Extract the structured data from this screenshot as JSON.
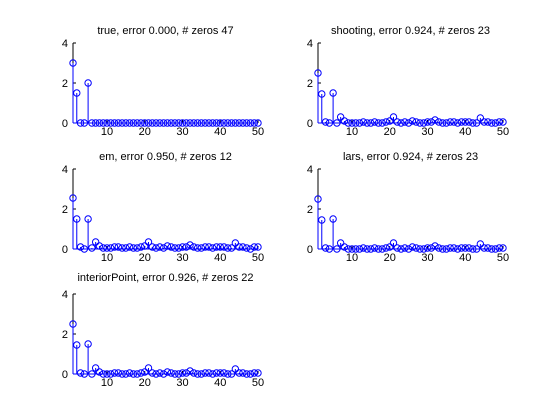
{
  "window": {
    "background": "#ffffff"
  },
  "colors": {
    "stem": "#0000ff",
    "axis": "#000000"
  },
  "chart_data": [
    {
      "type": "stem",
      "title": "true, error 0.000, # zeros 47",
      "xlim": [
        1,
        50
      ],
      "ylim": [
        0,
        4
      ],
      "xticks": [
        10,
        20,
        30,
        40,
        50
      ],
      "yticks": [
        0,
        2,
        4
      ],
      "x": [
        1,
        2,
        3,
        4,
        5,
        6,
        7,
        8,
        9,
        10,
        11,
        12,
        13,
        14,
        15,
        16,
        17,
        18,
        19,
        20,
        21,
        22,
        23,
        24,
        25,
        26,
        27,
        28,
        29,
        30,
        31,
        32,
        33,
        34,
        35,
        36,
        37,
        38,
        39,
        40,
        41,
        42,
        43,
        44,
        45,
        46,
        47,
        48,
        49,
        50
      ],
      "values": [
        3,
        1.5,
        0,
        0,
        2,
        0,
        0,
        0,
        0,
        0,
        0,
        0,
        0,
        0,
        0,
        0,
        0,
        0,
        0,
        0,
        0,
        0,
        0,
        0,
        0,
        0,
        0,
        0,
        0,
        0,
        0,
        0,
        0,
        0,
        0,
        0,
        0,
        0,
        0,
        0,
        0,
        0,
        0,
        0,
        0,
        0,
        0,
        0,
        0,
        0
      ]
    },
    {
      "type": "stem",
      "title": "shooting, error 0.924, # zeros 23",
      "xlim": [
        1,
        50
      ],
      "ylim": [
        0,
        4
      ],
      "xticks": [
        10,
        20,
        30,
        40,
        50
      ],
      "yticks": [
        0,
        2,
        4
      ],
      "x": [
        1,
        2,
        3,
        4,
        5,
        6,
        7,
        8,
        9,
        10,
        11,
        12,
        13,
        14,
        15,
        16,
        17,
        18,
        19,
        20,
        21,
        22,
        23,
        24,
        25,
        26,
        27,
        28,
        29,
        30,
        31,
        32,
        33,
        34,
        35,
        36,
        37,
        38,
        39,
        40,
        41,
        42,
        43,
        44,
        45,
        46,
        47,
        48,
        49,
        50
      ],
      "values": [
        2.5,
        1.45,
        0.05,
        0,
        1.5,
        0,
        0.3,
        0.1,
        0,
        0,
        0,
        0,
        0.05,
        0,
        0,
        0.05,
        0,
        0,
        0.05,
        0.1,
        0.3,
        0.05,
        0,
        0.05,
        0,
        0.1,
        0.05,
        0,
        0,
        0.05,
        0.05,
        0.15,
        0.05,
        0,
        0,
        0.05,
        0.05,
        0,
        0.05,
        0.05,
        0.05,
        0,
        0,
        0.25,
        0.05,
        0.05,
        0,
        0,
        0.05,
        0.05
      ]
    },
    {
      "type": "stem",
      "title": "em, error 0.950, # zeros 12",
      "xlim": [
        1,
        50
      ],
      "ylim": [
        0,
        4
      ],
      "xticks": [
        10,
        20,
        30,
        40,
        50
      ],
      "yticks": [
        0,
        2,
        4
      ],
      "x": [
        1,
        2,
        3,
        4,
        5,
        6,
        7,
        8,
        9,
        10,
        11,
        12,
        13,
        14,
        15,
        16,
        17,
        18,
        19,
        20,
        21,
        22,
        23,
        24,
        25,
        26,
        27,
        28,
        29,
        30,
        31,
        32,
        33,
        34,
        35,
        36,
        37,
        38,
        39,
        40,
        41,
        42,
        43,
        44,
        45,
        46,
        47,
        48,
        49,
        50
      ],
      "values": [
        2.55,
        1.5,
        0.1,
        0,
        1.5,
        0.05,
        0.35,
        0.15,
        0.05,
        0.05,
        0.05,
        0.1,
        0.1,
        0.05,
        0.05,
        0.1,
        0.05,
        0.05,
        0.1,
        0.15,
        0.35,
        0.1,
        0.05,
        0.1,
        0.05,
        0.15,
        0.1,
        0.05,
        0.05,
        0.1,
        0.1,
        0.2,
        0.1,
        0.05,
        0.05,
        0.1,
        0.1,
        0.05,
        0.1,
        0.1,
        0.1,
        0.05,
        0.05,
        0.3,
        0.1,
        0.1,
        0.05,
        0,
        0.1,
        0.1
      ]
    },
    {
      "type": "stem",
      "title": "lars, error 0.924, # zeros 23",
      "xlim": [
        1,
        50
      ],
      "ylim": [
        0,
        4
      ],
      "xticks": [
        10,
        20,
        30,
        40,
        50
      ],
      "yticks": [
        0,
        2,
        4
      ],
      "x": [
        1,
        2,
        3,
        4,
        5,
        6,
        7,
        8,
        9,
        10,
        11,
        12,
        13,
        14,
        15,
        16,
        17,
        18,
        19,
        20,
        21,
        22,
        23,
        24,
        25,
        26,
        27,
        28,
        29,
        30,
        31,
        32,
        33,
        34,
        35,
        36,
        37,
        38,
        39,
        40,
        41,
        42,
        43,
        44,
        45,
        46,
        47,
        48,
        49,
        50
      ],
      "values": [
        2.5,
        1.45,
        0.05,
        0,
        1.5,
        0,
        0.3,
        0.1,
        0,
        0,
        0,
        0,
        0.05,
        0,
        0,
        0.05,
        0,
        0,
        0.05,
        0.1,
        0.3,
        0.05,
        0,
        0.05,
        0,
        0.1,
        0.05,
        0,
        0,
        0.05,
        0.05,
        0.15,
        0.05,
        0,
        0,
        0.05,
        0.05,
        0,
        0.05,
        0.05,
        0.05,
        0,
        0,
        0.25,
        0.05,
        0.05,
        0,
        0,
        0.05,
        0.05
      ]
    },
    {
      "type": "stem",
      "title": "interiorPoint, error 0.926, # zeros 22",
      "xlim": [
        1,
        50
      ],
      "ylim": [
        0,
        4
      ],
      "xticks": [
        10,
        20,
        30,
        40,
        50
      ],
      "yticks": [
        0,
        2,
        4
      ],
      "x": [
        1,
        2,
        3,
        4,
        5,
        6,
        7,
        8,
        9,
        10,
        11,
        12,
        13,
        14,
        15,
        16,
        17,
        18,
        19,
        20,
        21,
        22,
        23,
        24,
        25,
        26,
        27,
        28,
        29,
        30,
        31,
        32,
        33,
        34,
        35,
        36,
        37,
        38,
        39,
        40,
        41,
        42,
        43,
        44,
        45,
        46,
        47,
        48,
        49,
        50
      ],
      "values": [
        2.5,
        1.45,
        0.05,
        0,
        1.5,
        0,
        0.3,
        0.1,
        0,
        0,
        0,
        0.05,
        0.05,
        0,
        0,
        0.05,
        0,
        0,
        0.05,
        0.1,
        0.3,
        0.05,
        0,
        0.05,
        0,
        0.1,
        0.05,
        0,
        0,
        0.05,
        0.05,
        0.15,
        0.05,
        0,
        0,
        0.05,
        0.05,
        0,
        0.05,
        0.05,
        0.05,
        0,
        0,
        0.25,
        0.05,
        0.05,
        0,
        0,
        0.05,
        0.05
      ]
    }
  ]
}
